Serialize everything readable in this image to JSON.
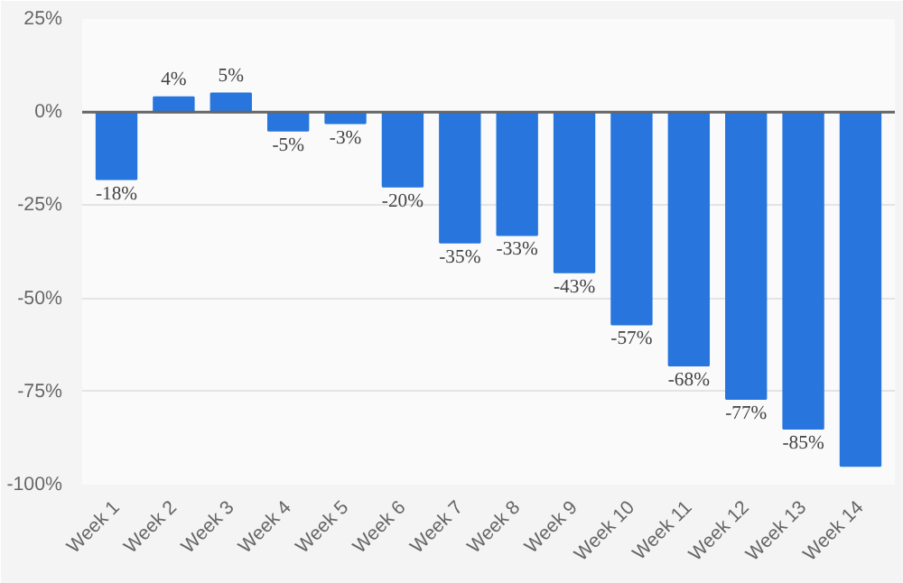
{
  "chart_data": {
    "type": "bar",
    "categories": [
      "Week 1",
      "Week 2",
      "Week 3",
      "Week 4",
      "Week 5",
      "Week 6",
      "Week 7",
      "Week 8",
      "Week 9",
      "Week 10",
      "Week 11",
      "Week 12",
      "Week 13",
      "Week 14"
    ],
    "values": [
      -18,
      4,
      5,
      -5,
      -3,
      -20,
      -35,
      -33,
      -43,
      -57,
      -68,
      -77,
      -85,
      -95
    ],
    "value_labels": [
      "-18%",
      "4%",
      "5%",
      "-5%",
      "-3%",
      "-20%",
      "-35%",
      "-33%",
      "-43%",
      "-57%",
      "-68%",
      "-77%",
      "-85%",
      null
    ],
    "color": "#2876dd",
    "ylim": [
      -100,
      25
    ],
    "yticks": [
      {
        "value": 25,
        "label": "25%"
      },
      {
        "value": 0,
        "label": "0%"
      },
      {
        "value": -25,
        "label": "-25%"
      },
      {
        "value": -50,
        "label": "-50%"
      },
      {
        "value": -75,
        "label": "-75%"
      },
      {
        "value": -100,
        "label": "-100%"
      }
    ],
    "grid": "y",
    "ref_lines": [
      {
        "axis": "y",
        "value": 0,
        "label": null,
        "color": "#666666"
      }
    ]
  }
}
